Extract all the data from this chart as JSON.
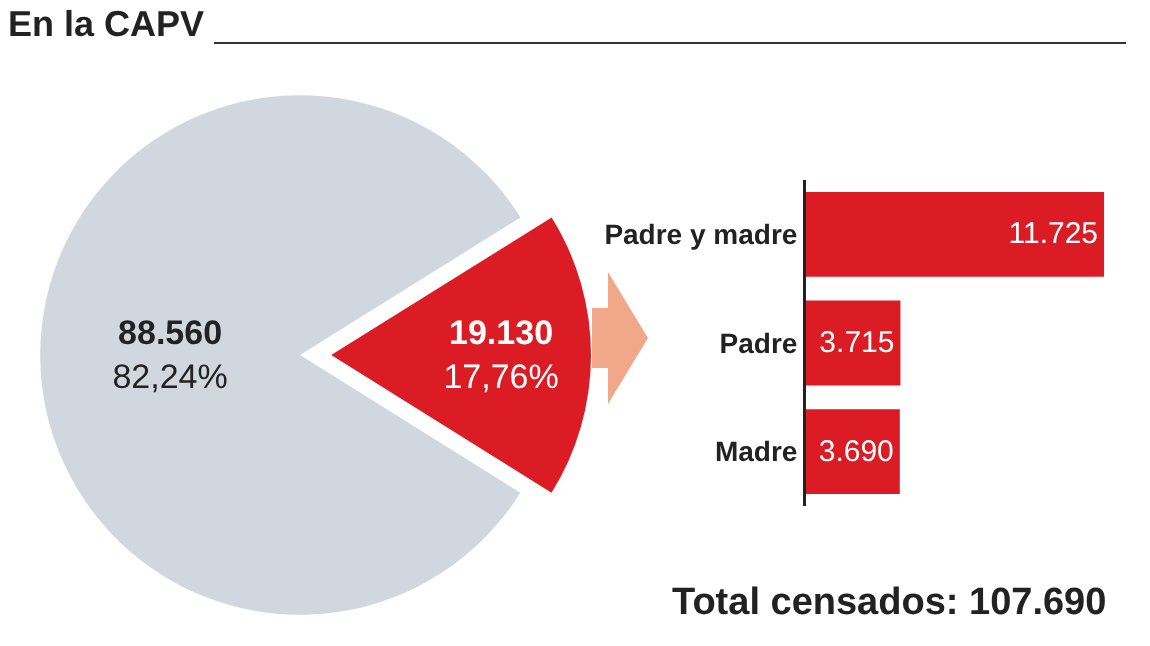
{
  "chart_data": [
    {
      "type": "pie",
      "title": "En la CAPV",
      "categories": [
        null,
        null
      ],
      "values": [
        88560,
        19130
      ],
      "colors": [
        "#d1d7de",
        "#dc1c24"
      ],
      "value_labels": [
        "88.560\n82,24%",
        "19.130\n17,76%"
      ]
    },
    {
      "type": "bar",
      "orientation": "horizontal",
      "categories": [
        "Padre y madre",
        "Padre",
        "Madre"
      ],
      "values": [
        11725,
        3715,
        3690
      ],
      "color": "#dc1c24",
      "value_labels": [
        "11.725",
        "3.715",
        "3.690"
      ],
      "annotations": [
        "Total censados: 107.690"
      ]
    }
  ]
}
